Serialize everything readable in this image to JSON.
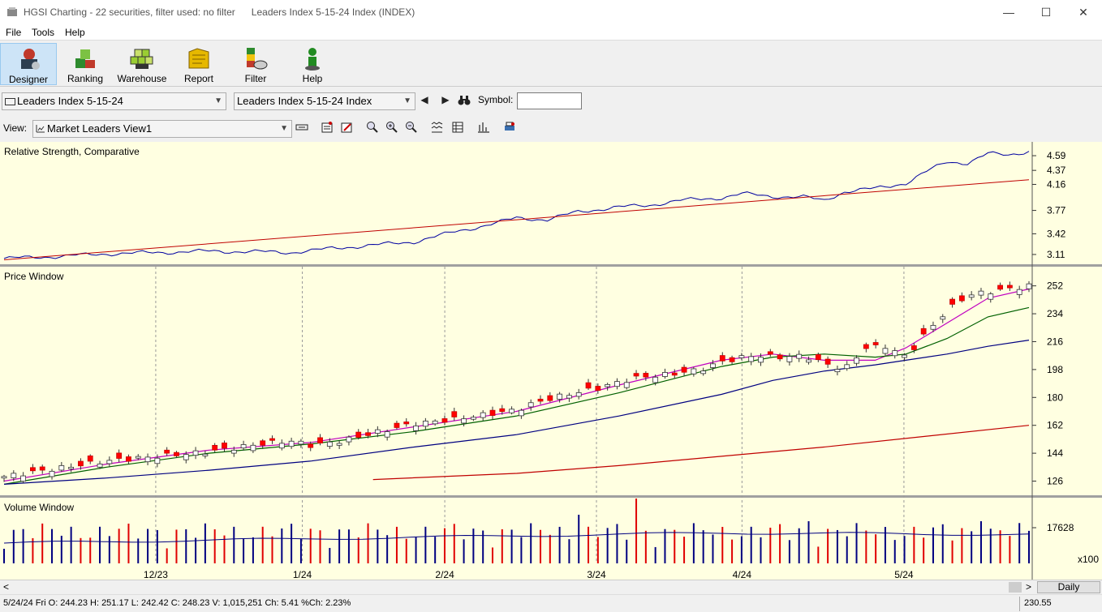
{
  "window": {
    "app_title": "HGSI Charting - 22 securities, filter used: no filter",
    "document_title": "Leaders Index 5-15-24 Index (INDEX)",
    "minimize_glyph": "—",
    "maximize_glyph": "☐",
    "close_glyph": "✕"
  },
  "menu": {
    "items": [
      "File",
      "Tools",
      "Help"
    ]
  },
  "toolbar": {
    "buttons": [
      {
        "label": "Designer",
        "icon": "designer-icon",
        "color": "#c0392b"
      },
      {
        "label": "Ranking",
        "icon": "ranking-icon",
        "color": "#2e8b2e"
      },
      {
        "label": "Warehouse",
        "icon": "warehouse-icon",
        "color": "#9acd32"
      },
      {
        "label": "Report",
        "icon": "report-icon",
        "color": "#e6b800"
      },
      {
        "label": "Filter",
        "icon": "filter-icon",
        "color": "#2e8b2e"
      },
      {
        "label": "Help",
        "icon": "help-icon",
        "color": "#228b22"
      }
    ]
  },
  "selectors": {
    "list_combo": "Leaders Index 5-15-24",
    "security_combo": "Leaders Index 5-15-24 Index",
    "prev_glyph": "◀",
    "next_glyph": "▶",
    "find_glyph": "🔭",
    "symbol_label": "Symbol:",
    "symbol_value": ""
  },
  "view": {
    "label": "View:",
    "value": "Market Leaders View1",
    "icons": [
      "layout-icon",
      "properties-icon",
      "edit-icon",
      "zoom-fit-icon",
      "zoom-in-icon",
      "zoom-out-icon",
      "indicator-icon",
      "table-icon",
      "bar-style-icon",
      "print-icon"
    ]
  },
  "chart_data": [
    {
      "type": "line",
      "title": "Relative Strength, Comparative",
      "y_ticks": [
        4.59,
        4.37,
        4.16,
        3.77,
        3.42,
        3.11
      ],
      "ylim": [
        3.0,
        4.7
      ],
      "series": [
        {
          "color": "#0000a0",
          "values_desc": "rs",
          "x": [
            0,
            0.05,
            0.1,
            0.15,
            0.2,
            0.25,
            0.28,
            0.32,
            0.36,
            0.4,
            0.44,
            0.48,
            0.5,
            0.53,
            0.56,
            0.6,
            0.63,
            0.66,
            0.7,
            0.72,
            0.75,
            0.78,
            0.8,
            0.82,
            0.85,
            0.88,
            0.9,
            0.92,
            0.94,
            0.96,
            0.98,
            1.0
          ],
          "values": [
            3.05,
            3.08,
            3.12,
            3.14,
            3.16,
            3.15,
            3.14,
            3.2,
            3.25,
            3.3,
            3.45,
            3.58,
            3.66,
            3.63,
            3.75,
            3.82,
            3.85,
            3.92,
            3.96,
            4.02,
            3.98,
            3.97,
            3.92,
            4.05,
            4.1,
            4.18,
            4.35,
            4.5,
            4.48,
            4.62,
            4.6,
            4.66
          ]
        },
        {
          "color": "#c00000",
          "x": [
            0,
            1.0
          ],
          "values": [
            3.03,
            4.23
          ]
        }
      ]
    },
    {
      "type": "candlestick",
      "title": "Price Window",
      "y_ticks": [
        252,
        234,
        216,
        198,
        180,
        162,
        144,
        126
      ],
      "ylim": [
        120,
        256
      ],
      "x_labels": [
        "12/23",
        "1/24",
        "2/24",
        "3/24",
        "4/24",
        "5/24"
      ],
      "x_label_pos": [
        0.148,
        0.291,
        0.43,
        0.578,
        0.72,
        0.878
      ],
      "candles": 108,
      "close_path_x": [
        0,
        0.05,
        0.1,
        0.15,
        0.2,
        0.25,
        0.28,
        0.3,
        0.33,
        0.36,
        0.4,
        0.44,
        0.47,
        0.5,
        0.52,
        0.55,
        0.58,
        0.6,
        0.62,
        0.65,
        0.68,
        0.7,
        0.73,
        0.76,
        0.78,
        0.8,
        0.82,
        0.84,
        0.86,
        0.88,
        0.9,
        0.92,
        0.94,
        0.96,
        0.98,
        1.0
      ],
      "close_path": [
        129,
        134,
        139,
        142,
        145,
        150,
        152,
        149,
        152,
        157,
        163,
        166,
        169,
        172,
        177,
        182,
        186,
        190,
        193,
        195,
        198,
        203,
        207,
        206,
        207,
        202,
        198,
        212,
        213,
        206,
        222,
        236,
        246,
        248,
        250,
        252
      ],
      "ma_series": [
        {
          "name": "",
          "color": "#c000c0",
          "x": [
            0,
            0.1,
            0.2,
            0.3,
            0.4,
            0.5,
            0.6,
            0.7,
            0.75,
            0.8,
            0.85,
            0.88,
            0.92,
            0.96,
            1.0
          ],
          "values": [
            126,
            137,
            146,
            151,
            161,
            171,
            188,
            204,
            208,
            204,
            204,
            212,
            228,
            244,
            250
          ]
        },
        {
          "name": "",
          "color": "#006000",
          "x": [
            0,
            0.1,
            0.2,
            0.3,
            0.4,
            0.5,
            0.6,
            0.7,
            0.75,
            0.8,
            0.85,
            0.88,
            0.92,
            0.96,
            1.0
          ],
          "values": [
            124,
            135,
            144,
            150,
            158,
            168,
            183,
            200,
            206,
            208,
            206,
            208,
            218,
            232,
            238
          ]
        },
        {
          "name": "",
          "color": "#000080",
          "x": [
            0,
            0.1,
            0.2,
            0.3,
            0.4,
            0.5,
            0.6,
            0.7,
            0.75,
            0.8,
            0.85,
            0.88,
            0.92,
            0.96,
            1.0
          ],
          "values": [
            124,
            128,
            133,
            139,
            148,
            156,
            168,
            182,
            191,
            197,
            201,
            204,
            208,
            213,
            217
          ]
        },
        {
          "name": "",
          "color": "#c00000",
          "x": [
            0.36,
            0.5,
            0.6,
            0.7,
            0.8,
            0.9,
            1.0
          ],
          "values": [
            127,
            131,
            136,
            142,
            148,
            155,
            162
          ]
        }
      ]
    },
    {
      "type": "bar",
      "title": "Volume Window",
      "y_ticks": [
        17628
      ],
      "unit": "x100",
      "bars": 108,
      "avg_line_color": "#000080",
      "up_color": "#000080",
      "down_color": "#e00000"
    }
  ],
  "scroll": {
    "left_glyph": "<",
    "right_glyph": ">",
    "period": "Daily"
  },
  "status": {
    "text": "5/24/24 Fri O: 244.23 H: 251.17 L: 242.42 C: 248.23 V: 1,015,251 Ch: 5.41 %Ch: 2.23%",
    "right_value": "230.55"
  }
}
